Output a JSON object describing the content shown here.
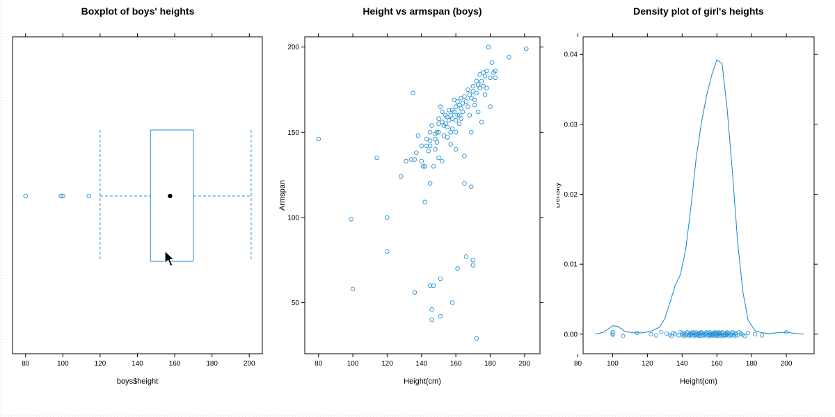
{
  "chart_data": [
    {
      "type": "boxplot",
      "title": "Boxplot of boys' heights",
      "xlabel": "boys$height",
      "ylabel": "",
      "xlim": [
        73,
        207
      ],
      "xticks": [
        80,
        100,
        120,
        140,
        160,
        180,
        200
      ],
      "box": {
        "whisker_low": 120,
        "q1": 147,
        "median": 157.5,
        "q3": 170,
        "whisker_high": 201
      },
      "outliers": [
        80,
        99,
        100,
        114
      ],
      "color": "#1f8fd6"
    },
    {
      "type": "scatter",
      "title": "Height vs armspan (boys)",
      "xlabel": "Height(cm)",
      "ylabel": "Armspan",
      "xlim": [
        72,
        209
      ],
      "ylim": [
        20,
        206
      ],
      "xticks": [
        80,
        100,
        120,
        140,
        160,
        180,
        200
      ],
      "yticks": [
        50,
        100,
        150,
        200
      ],
      "color": "#1f8fd6",
      "points": [
        [
          80,
          146
        ],
        [
          99,
          99
        ],
        [
          100,
          58
        ],
        [
          114,
          135
        ],
        [
          120,
          100
        ],
        [
          120,
          80
        ],
        [
          128,
          124
        ],
        [
          131,
          133
        ],
        [
          134,
          134
        ],
        [
          135,
          173
        ],
        [
          136,
          56
        ],
        [
          136,
          134
        ],
        [
          137,
          138
        ],
        [
          138,
          148
        ],
        [
          140,
          142
        ],
        [
          140,
          133
        ],
        [
          141,
          130
        ],
        [
          142,
          130
        ],
        [
          142,
          109
        ],
        [
          143,
          146
        ],
        [
          143,
          142
        ],
        [
          144,
          139
        ],
        [
          145,
          150
        ],
        [
          145,
          145
        ],
        [
          145,
          142
        ],
        [
          145,
          120
        ],
        [
          145,
          60
        ],
        [
          146,
          154
        ],
        [
          146,
          46
        ],
        [
          146,
          40
        ],
        [
          147,
          130
        ],
        [
          147,
          60
        ],
        [
          148,
          149
        ],
        [
          148,
          146
        ],
        [
          148,
          140
        ],
        [
          149,
          150
        ],
        [
          149,
          144
        ],
        [
          150,
          158
        ],
        [
          150,
          155
        ],
        [
          150,
          150
        ],
        [
          150,
          135
        ],
        [
          151,
          165
        ],
        [
          151,
          42
        ],
        [
          151,
          64
        ],
        [
          152,
          162
        ],
        [
          152,
          156
        ],
        [
          152,
          133
        ],
        [
          153,
          154
        ],
        [
          153,
          148
        ],
        [
          154,
          160
        ],
        [
          154,
          155
        ],
        [
          155,
          159
        ],
        [
          155,
          153
        ],
        [
          155,
          147
        ],
        [
          156,
          163
        ],
        [
          156,
          157
        ],
        [
          157,
          160
        ],
        [
          157,
          150
        ],
        [
          157,
          143
        ],
        [
          158,
          163
        ],
        [
          158,
          158
        ],
        [
          158,
          152
        ],
        [
          158,
          50
        ],
        [
          159,
          169
        ],
        [
          159,
          162
        ],
        [
          160,
          165
        ],
        [
          160,
          157
        ],
        [
          160,
          150
        ],
        [
          160,
          140
        ],
        [
          161,
          168
        ],
        [
          161,
          160
        ],
        [
          161,
          70
        ],
        [
          162,
          166
        ],
        [
          162,
          160
        ],
        [
          162,
          155
        ],
        [
          163,
          170
        ],
        [
          163,
          164
        ],
        [
          163,
          158
        ],
        [
          164,
          167
        ],
        [
          164,
          162
        ],
        [
          165,
          171
        ],
        [
          165,
          136
        ],
        [
          165,
          120
        ],
        [
          166,
          168
        ],
        [
          166,
          77
        ],
        [
          167,
          175
        ],
        [
          167,
          165
        ],
        [
          168,
          172
        ],
        [
          168,
          160
        ],
        [
          169,
          170
        ],
        [
          169,
          150
        ],
        [
          169,
          118
        ],
        [
          170,
          177
        ],
        [
          170,
          174
        ],
        [
          170,
          75
        ],
        [
          170,
          72
        ],
        [
          171,
          169
        ],
        [
          171,
          166
        ],
        [
          172,
          180
        ],
        [
          172,
          173
        ],
        [
          172,
          29
        ],
        [
          173,
          178
        ],
        [
          173,
          162
        ],
        [
          174,
          184
        ],
        [
          174,
          176
        ],
        [
          175,
          180
        ],
        [
          175,
          156
        ],
        [
          176,
          185
        ],
        [
          176,
          177
        ],
        [
          177,
          183
        ],
        [
          177,
          172
        ],
        [
          178,
          186
        ],
        [
          178,
          176
        ],
        [
          179,
          200
        ],
        [
          180,
          182
        ],
        [
          180,
          165
        ],
        [
          181,
          191
        ],
        [
          182,
          185
        ],
        [
          183,
          186
        ],
        [
          183,
          182
        ],
        [
          191,
          194
        ],
        [
          201,
          199
        ]
      ]
    },
    {
      "type": "density",
      "title": "Density plot of girl's heights",
      "xlabel": "Height(cm)",
      "ylabel": "Density",
      "xlim": [
        83,
        216
      ],
      "ylim": [
        -0.0028,
        0.0425
      ],
      "xticks": [
        80,
        100,
        120,
        140,
        160,
        180,
        200
      ],
      "yticks": [
        0.0,
        0.01,
        0.02,
        0.03,
        0.04
      ],
      "ytick_labels": [
        "0.00",
        "0.01",
        "0.02",
        "0.03",
        "0.04"
      ],
      "color": "#1f8fd6",
      "curve": [
        [
          90,
          0.0
        ],
        [
          95,
          0.0003
        ],
        [
          100,
          0.0012
        ],
        [
          103,
          0.0011
        ],
        [
          107,
          0.0004
        ],
        [
          112,
          0.0002
        ],
        [
          117,
          0.0002
        ],
        [
          122,
          0.0004
        ],
        [
          127,
          0.001
        ],
        [
          130,
          0.0022
        ],
        [
          133,
          0.0045
        ],
        [
          136,
          0.007
        ],
        [
          139,
          0.0085
        ],
        [
          142,
          0.012
        ],
        [
          145,
          0.018
        ],
        [
          148,
          0.025
        ],
        [
          151,
          0.03
        ],
        [
          154,
          0.034
        ],
        [
          157,
          0.037
        ],
        [
          160,
          0.0392
        ],
        [
          163,
          0.0387
        ],
        [
          166,
          0.032
        ],
        [
          169,
          0.023
        ],
        [
          172,
          0.013
        ],
        [
          175,
          0.006
        ],
        [
          178,
          0.002
        ],
        [
          182,
          0.0005
        ],
        [
          186,
          0.0002
        ],
        [
          190,
          0.0001
        ],
        [
          195,
          0.0002
        ],
        [
          200,
          0.0003
        ],
        [
          205,
          0.0001
        ],
        [
          210,
          0.0
        ]
      ],
      "rug": [
        100,
        100,
        100,
        106,
        114,
        122,
        125,
        128,
        131,
        133,
        134,
        135,
        136,
        138,
        139,
        140,
        140,
        141,
        141,
        142,
        142,
        143,
        143,
        144,
        144,
        145,
        145,
        145,
        146,
        146,
        147,
        147,
        147,
        148,
        148,
        148,
        149,
        149,
        150,
        150,
        150,
        150,
        151,
        151,
        152,
        152,
        152,
        153,
        153,
        154,
        154,
        155,
        155,
        155,
        156,
        156,
        156,
        157,
        157,
        157,
        158,
        158,
        158,
        159,
        159,
        159,
        160,
        160,
        160,
        160,
        161,
        161,
        161,
        162,
        162,
        162,
        163,
        163,
        163,
        164,
        164,
        165,
        165,
        165,
        166,
        166,
        166,
        167,
        167,
        168,
        168,
        169,
        169,
        170,
        170,
        171,
        171,
        172,
        173,
        174,
        175,
        176,
        178,
        182,
        186,
        200
      ]
    }
  ]
}
